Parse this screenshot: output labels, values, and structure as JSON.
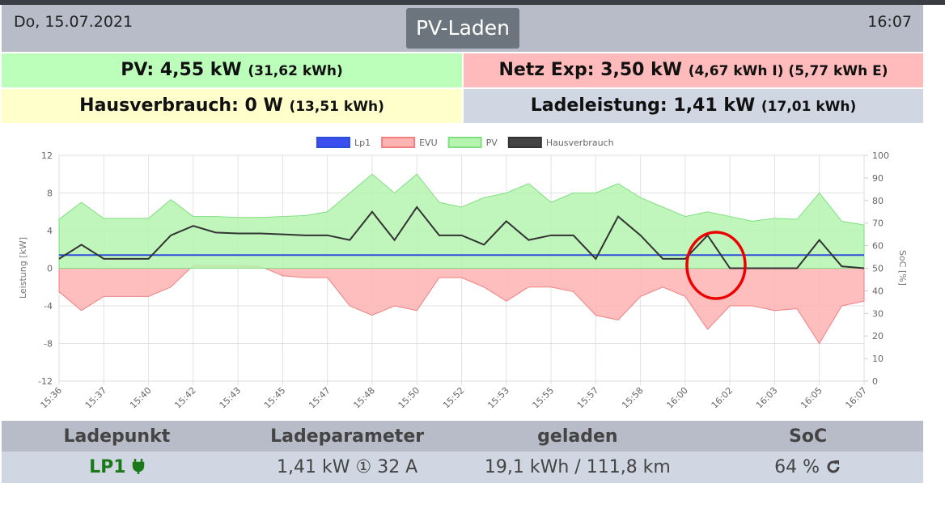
{
  "header": {
    "date": "Do, 15.07.2021",
    "title": "PV-Laden",
    "time": "16:07"
  },
  "tiles": [
    {
      "label": "PV: 4,55 kW",
      "detail": "(31,62 kWh)"
    },
    {
      "label": "Netz Exp: 3,50 kW",
      "detail": "(4,67 kWh I) (5,77 kWh E)"
    },
    {
      "label": "Hausverbrauch: 0 W",
      "detail": "(13,51 kWh)"
    },
    {
      "label": "Ladeleistung: 1,41 kW",
      "detail": "(17,01 kWh)"
    }
  ],
  "chart_data": {
    "type": "line",
    "y_label": "Leistung [kW]",
    "y2_label": "SoC [%]",
    "categories": [
      "15:36",
      null,
      "15:37",
      null,
      "15:40",
      null,
      "15:42",
      null,
      "15:43",
      null,
      "15:45",
      null,
      "15:47",
      null,
      "15:48",
      null,
      "15:50",
      null,
      "15:52",
      null,
      "15:53",
      null,
      "15:55",
      null,
      "15:57",
      null,
      "15:58",
      null,
      "16:00",
      null,
      "16:02",
      null,
      "16:03",
      null,
      "16:05",
      null,
      "16:07"
    ],
    "series": [
      {
        "name": "Lp1",
        "color": "#2d4fd8",
        "fill": "#3b4ff0",
        "area": false,
        "values": [
          1.4,
          1.4,
          1.4,
          1.4,
          1.4,
          1.4,
          1.4,
          1.4,
          1.4,
          1.4,
          1.4,
          1.4,
          1.4,
          1.4,
          1.4,
          1.4,
          1.4,
          1.4,
          1.4,
          1.4,
          1.4,
          1.4,
          1.4,
          1.4,
          1.4,
          1.4,
          1.4,
          1.4,
          1.4,
          1.4,
          1.4,
          1.4,
          1.4,
          1.4,
          1.4,
          1.4,
          1.4
        ]
      },
      {
        "name": "EVU",
        "color": "#f08080",
        "fill": "#ffb3b3",
        "area": true,
        "values": [
          -2.5,
          -4.5,
          -3,
          -3,
          -3,
          -2,
          0.3,
          0.3,
          0.3,
          0.2,
          -0.8,
          -1,
          -1,
          -4,
          -5,
          -4,
          -4.5,
          -1,
          -1,
          -2,
          -3.5,
          -2,
          -2,
          -2.5,
          -5,
          -5.5,
          -3,
          -2,
          -3,
          -6.5,
          -4,
          -4,
          -4.5,
          -4.3,
          -8,
          -4,
          -3.5
        ]
      },
      {
        "name": "PV",
        "color": "#7ee07e",
        "fill": "#b5f5b0",
        "area": true,
        "values": [
          5.2,
          7,
          5.3,
          5.3,
          5.3,
          7.3,
          5.5,
          5.5,
          5.4,
          5.4,
          5.5,
          5.6,
          6,
          8,
          10,
          8,
          10,
          7,
          6.5,
          7.5,
          8,
          9,
          7,
          8,
          8,
          9,
          7.5,
          6.5,
          5.5,
          6,
          5.5,
          5,
          5.3,
          5.2,
          8,
          5,
          4.6
        ]
      },
      {
        "name": "Hausverbrauch",
        "color": "#333333",
        "fill": "#444444",
        "area": false,
        "values": [
          1,
          2.5,
          1,
          1,
          1,
          3.5,
          4.5,
          3.8,
          3.7,
          3.7,
          3.6,
          3.5,
          3.5,
          3,
          6,
          3,
          6.5,
          3.5,
          3.5,
          2.5,
          5,
          3,
          3.5,
          3.5,
          1,
          5.5,
          3.5,
          1,
          1,
          3.5,
          0,
          0,
          0,
          0,
          3,
          0.2,
          0
        ]
      }
    ],
    "ylim": [
      -12,
      12
    ],
    "yticks": [
      -12,
      -8,
      -4,
      0,
      4,
      8,
      12
    ],
    "y2lim": [
      0,
      100
    ],
    "y2ticks": [
      0,
      10,
      20,
      30,
      40,
      50,
      60,
      70,
      80,
      90,
      100
    ],
    "grid": true,
    "legend": "top"
  },
  "table": {
    "header": [
      "Ladepunkt",
      "Ladeparameter",
      "geladen",
      "SoC"
    ],
    "rows": [
      [
        "LP1",
        "1,41 kW ① 32 A",
        "19,1 kWh / 111,8 km",
        "64 %"
      ]
    ]
  }
}
